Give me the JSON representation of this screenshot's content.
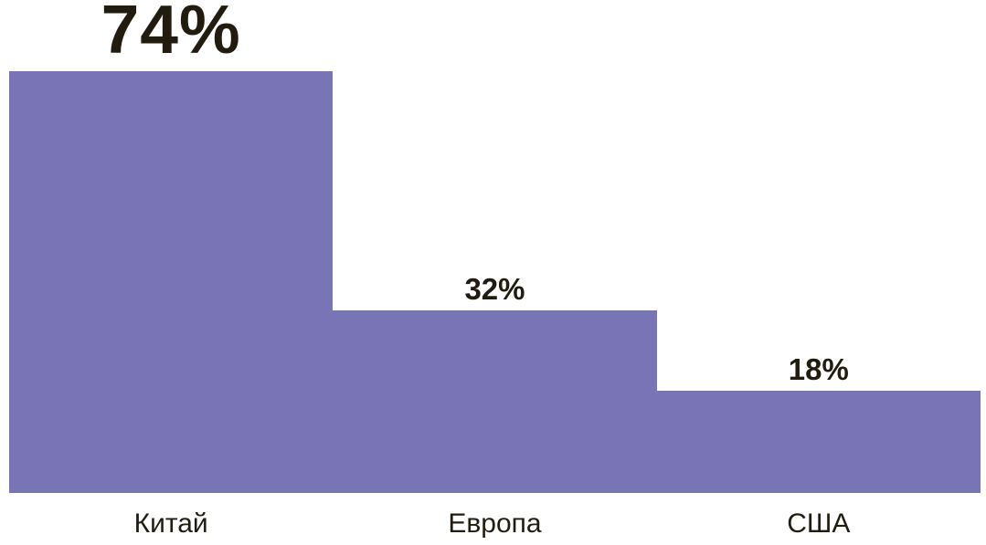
{
  "chart_data": {
    "type": "bar",
    "title": "",
    "categories": [
      "Китай",
      "Европа",
      "США"
    ],
    "values": [
      74,
      32,
      18
    ],
    "value_labels": [
      "74%",
      "32%",
      "18%"
    ],
    "unit": "%",
    "ylim": [
      0,
      74
    ],
    "axes_visible": false,
    "grid": false,
    "legend": false,
    "bars_contiguous": true,
    "highlighted_value_index": 0,
    "bar_color": "#7974B5",
    "label_color": "#221B10",
    "background_color": "#FFFFFF"
  }
}
